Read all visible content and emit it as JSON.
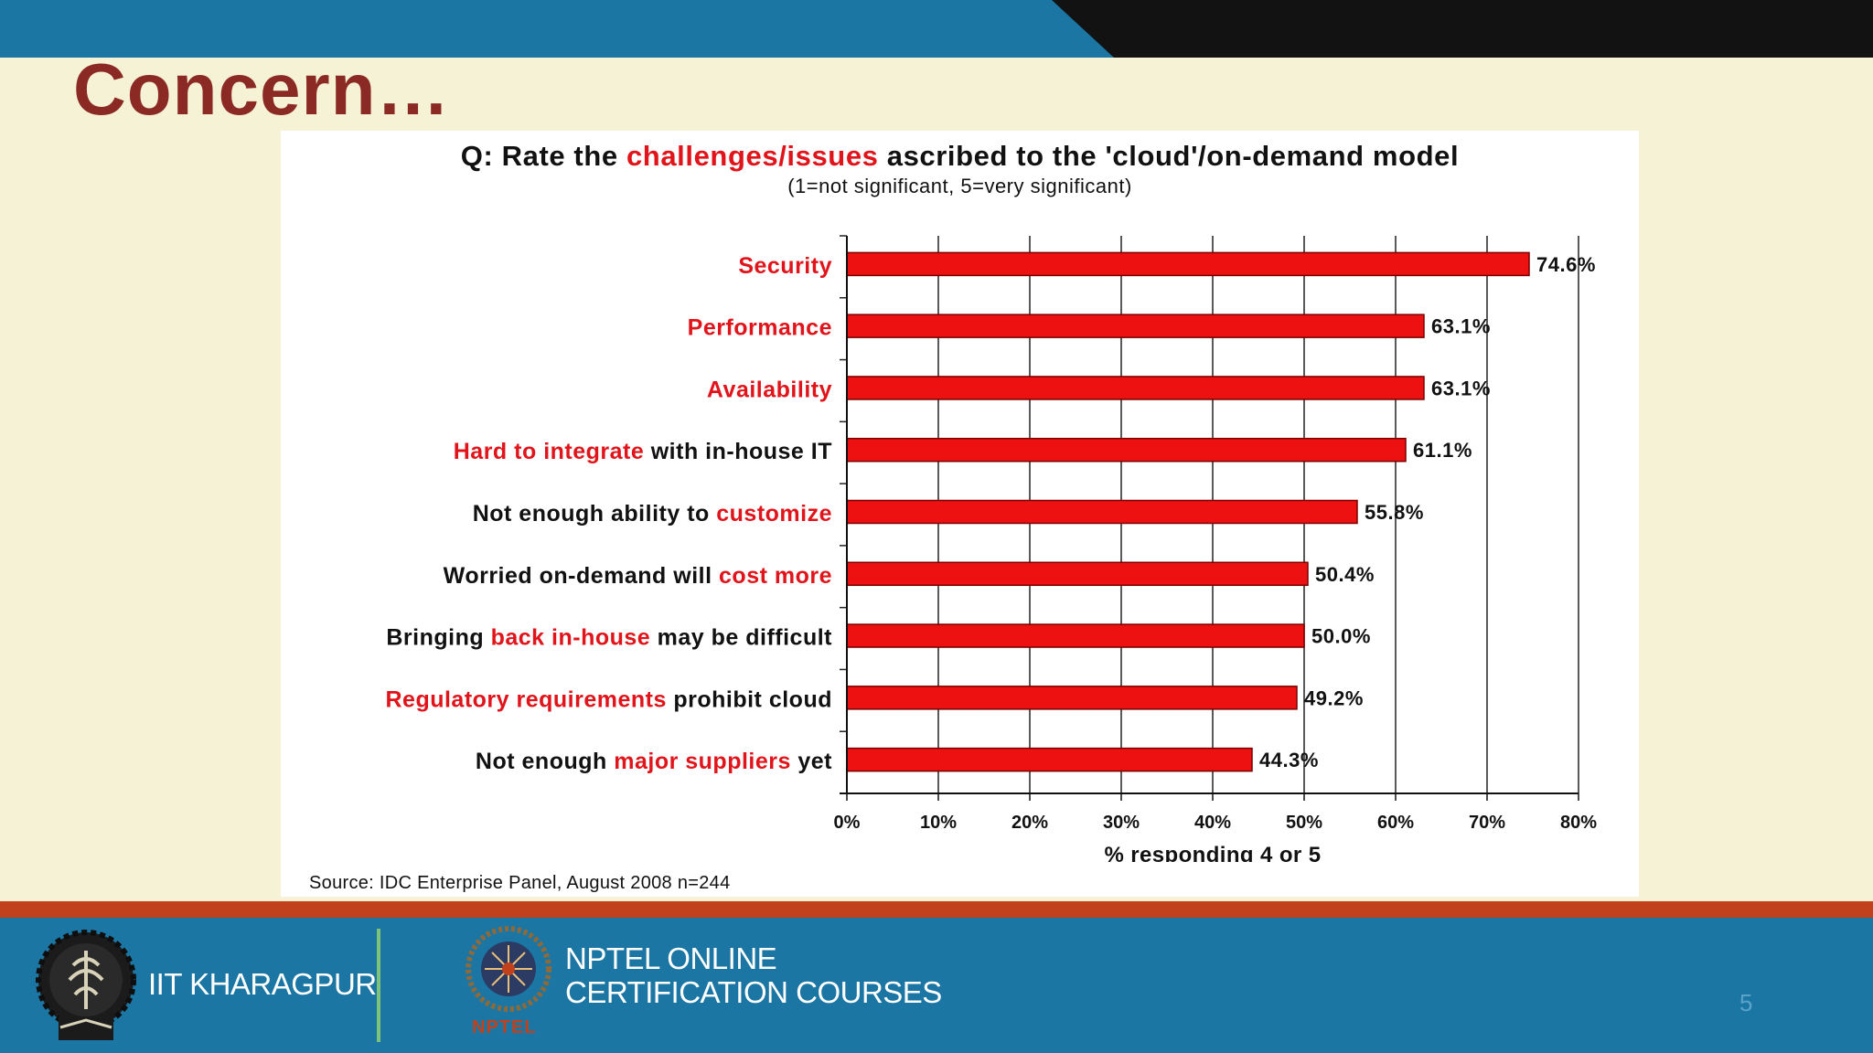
{
  "slide": {
    "title": "Concern…",
    "page_number": "5"
  },
  "panel": {
    "question_prefix": "Q: Rate the ",
    "question_highlight": "challenges/issues",
    "question_suffix": " ascribed to the 'cloud'/on-demand model",
    "scale_note": "(1=not significant, 5=very significant)",
    "source": "Source: IDC Enterprise Panel, August 2008  n=244"
  },
  "footer": {
    "institute": "IIT KHARAGPUR",
    "program_line1": "NPTEL ONLINE",
    "program_line2": "CERTIFICATION COURSES",
    "nptel_badge": "NPTEL"
  },
  "colors": {
    "bar_fill": "#ee1111",
    "bar_stroke": "#7a0000",
    "highlight_text": "#e0141a",
    "normal_text": "#111111",
    "title": "#8b2a24",
    "header_blue": "#1c76a3",
    "accent_stripe": "#c2411d"
  },
  "chart_data": {
    "type": "bar",
    "orientation": "horizontal",
    "xlabel": "% responding 4 or 5",
    "xlim": [
      0,
      80
    ],
    "xticks": [
      0,
      10,
      20,
      30,
      40,
      50,
      60,
      70,
      80
    ],
    "tick_suffix": "%",
    "grid": true,
    "categories": [
      {
        "parts": [
          {
            "text": "Security",
            "highlight": true
          }
        ]
      },
      {
        "parts": [
          {
            "text": "Performance",
            "highlight": true
          }
        ]
      },
      {
        "parts": [
          {
            "text": "Availability",
            "highlight": true
          }
        ]
      },
      {
        "parts": [
          {
            "text": "Hard to integrate",
            "highlight": true
          },
          {
            "text": " with in-house IT",
            "highlight": false
          }
        ]
      },
      {
        "parts": [
          {
            "text": "Not enough ability to ",
            "highlight": false
          },
          {
            "text": "customize",
            "highlight": true
          }
        ]
      },
      {
        "parts": [
          {
            "text": "Worried on-demand will ",
            "highlight": false
          },
          {
            "text": "cost more",
            "highlight": true
          }
        ]
      },
      {
        "parts": [
          {
            "text": "Bringing ",
            "highlight": false
          },
          {
            "text": "back in-house",
            "highlight": true
          },
          {
            "text": " may be difficult",
            "highlight": false
          }
        ]
      },
      {
        "parts": [
          {
            "text": "Regulatory requirements",
            "highlight": true
          },
          {
            "text": " prohibit cloud",
            "highlight": false
          }
        ]
      },
      {
        "parts": [
          {
            "text": "Not enough ",
            "highlight": false
          },
          {
            "text": "major suppliers",
            "highlight": true
          },
          {
            "text": " yet",
            "highlight": false
          }
        ]
      }
    ],
    "values": [
      74.6,
      63.1,
      63.1,
      61.1,
      55.8,
      50.4,
      50.0,
      49.2,
      44.3
    ],
    "value_labels": [
      "74.6%",
      "63.1%",
      "63.1%",
      "61.1%",
      "55.8%",
      "50.4%",
      "50.0%",
      "49.2%",
      "44.3%"
    ]
  }
}
